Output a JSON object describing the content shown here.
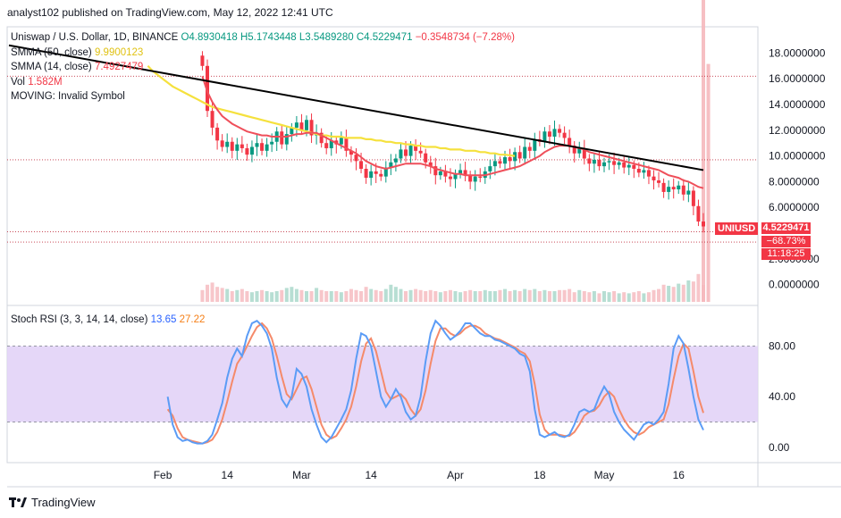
{
  "header": {
    "publish_text": "analyst102 published on TradingView.com, May 12, 2022 12:41 UTC"
  },
  "legend": {
    "symbol": "Uniswap / U.S. Dollar, 1D, BINANCE",
    "open": "O4.8930418",
    "high": "H5.1743448",
    "low": "L3.5489280",
    "close": "C4.5229471",
    "change": "−0.3548734 (−7.28%)",
    "sma50_label": "SMMA (50, close)",
    "sma50_value": "9.9900123",
    "sma14_label": "SMMA (14, close)",
    "sma14_value": "7.4927479",
    "vol_label": "Vol",
    "vol_value": "1.582M",
    "moving_label": "MOVING: Invalid Symbol",
    "stoch_label": "Stoch RSI (3, 3, 14, 14, close)",
    "stoch_k_value": "13.65",
    "stoch_d_value": "27.22"
  },
  "price_tags": {
    "symbol": "UNIUSD",
    "price": "4.5229471",
    "change_pct": "−68.73%",
    "countdown": "11:18:25"
  },
  "footer": {
    "brand": "TradingView"
  },
  "colors": {
    "up": "#089981",
    "down": "#f23645",
    "sma50": "#f5e13d",
    "sma14": "#ef4f5a",
    "trend": "#000000",
    "stoch_k": "#5b9cf6",
    "stoch_d": "#f58a6a",
    "band": "#e1d0f7"
  },
  "chart_data": [
    {
      "type": "candlestick",
      "title": "Uniswap / U.S. Dollar, 1D, BINANCE",
      "ylim": [
        -1,
        19
      ],
      "y_ticks": [
        0,
        2,
        4,
        6,
        8,
        10,
        12,
        14,
        16,
        18
      ],
      "y_tick_labels": [
        "0.0000000",
        "2.0000000",
        "",
        "6.0000000",
        "8.0000000",
        "10.0000000",
        "12.0000000",
        "14.0000000",
        "16.0000000",
        "18.0000000"
      ],
      "x_tick_labels": [
        {
          "day": 31,
          "label": "Feb"
        },
        {
          "day": 44,
          "label": "14"
        },
        {
          "day": 59,
          "label": "Mar"
        },
        {
          "day": 73,
          "label": "14"
        },
        {
          "day": 90,
          "label": "Apr"
        },
        {
          "day": 107,
          "label": "18"
        },
        {
          "day": 120,
          "label": "May"
        },
        {
          "day": 135,
          "label": "16"
        }
      ],
      "dotted_levels": [
        16.2,
        9.7,
        4.1,
        3.3
      ],
      "closes": [
        17.0,
        13.5,
        12.2,
        11.2,
        10.7,
        11.1,
        10.4,
        10.9,
        10.6,
        10.1,
        10.7,
        11.0,
        10.4,
        10.9,
        11.1,
        11.9,
        10.9,
        11.7,
        12.2,
        12.6,
        12.0,
        12.8,
        11.6,
        11.8,
        11.0,
        10.6,
        11.2,
        10.9,
        11.4,
        10.4,
        10.1,
        9.6,
        9.0,
        8.3,
        8.8,
        8.6,
        8.4,
        9.1,
        9.5,
        9.8,
        10.5,
        10.0,
        10.8,
        10.4,
        10.2,
        9.5,
        9.2,
        8.5,
        8.8,
        8.4,
        8.2,
        8.6,
        8.9,
        8.5,
        8.0,
        8.4,
        8.3,
        8.8,
        9.2,
        9.6,
        9.4,
        9.9,
        9.6,
        10.3,
        9.8,
        10.7,
        10.4,
        11.3,
        11.1,
        11.9,
        11.5,
        12.1,
        11.8,
        11.4,
        10.8,
        10.2,
        10.6,
        9.8,
        9.4,
        9.7,
        9.2,
        9.5,
        9.6,
        9.3,
        9.5,
        9.1,
        9.3,
        9.0,
        8.7,
        8.9,
        8.4,
        8.1,
        7.9,
        7.2,
        7.6,
        7.4,
        7.7,
        7.0,
        7.3,
        6.1,
        4.9,
        4.52
      ],
      "smma14": [
        16.2,
        15.0,
        14.2,
        13.6,
        13.1,
        12.8,
        12.5,
        12.3,
        12.1,
        11.9,
        11.8,
        11.7,
        11.6,
        11.6,
        11.5,
        11.5,
        11.5,
        11.5,
        11.6,
        11.7,
        11.7,
        11.8,
        11.8,
        11.8,
        11.6,
        11.4,
        11.2,
        11.0,
        10.8,
        10.6,
        10.4,
        10.2,
        9.9,
        9.6,
        9.4,
        9.2,
        9.1,
        9.0,
        9.1,
        9.2,
        9.3,
        9.4,
        9.4,
        9.4,
        9.4,
        9.3,
        9.2,
        9.0,
        8.9,
        8.8,
        8.7,
        8.6,
        8.6,
        8.5,
        8.5,
        8.5,
        8.5,
        8.5,
        8.6,
        8.7,
        8.8,
        8.9,
        9.0,
        9.1,
        9.2,
        9.4,
        9.6,
        9.8,
        10.0,
        10.3,
        10.5,
        10.7,
        10.8,
        10.8,
        10.8,
        10.7,
        10.6,
        10.5,
        10.3,
        10.2,
        10.1,
        10.0,
        9.9,
        9.8,
        9.7,
        9.6,
        9.5,
        9.4,
        9.3,
        9.2,
        9.1,
        9.0,
        8.9,
        8.7,
        8.5,
        8.4,
        8.3,
        8.1,
        8.0,
        7.8,
        7.6,
        7.49
      ],
      "smma50": [
        17.0,
        16.6,
        16.3,
        16.0,
        15.7,
        15.4,
        15.2,
        15.0,
        14.8,
        14.6,
        14.4,
        14.2,
        14.0,
        13.8,
        13.7,
        13.6,
        13.5,
        13.4,
        13.3,
        13.2,
        13.1,
        13.0,
        12.9,
        12.8,
        12.7,
        12.6,
        12.5,
        12.4,
        12.3,
        12.2,
        12.1,
        12.0,
        11.9,
        11.8,
        11.7,
        11.6,
        11.6,
        11.5,
        11.5,
        11.5,
        11.4,
        11.4,
        11.4,
        11.4,
        11.3,
        11.3,
        11.2,
        11.2,
        11.1,
        11.1,
        11.0,
        11.0,
        10.9,
        10.9,
        10.8,
        10.8,
        10.7,
        10.7,
        10.7,
        10.6,
        10.6,
        10.5,
        10.5,
        10.5,
        10.4,
        10.4,
        10.4,
        10.3,
        10.3,
        10.2,
        10.2,
        10.1,
        10.1,
        10.05,
        9.99
      ],
      "smma50_start_day": 28,
      "trendline": {
        "from": {
          "day": 0,
          "price": 18.6
        },
        "to": {
          "day": 140,
          "price": 8.9
        }
      },
      "volumes": [
        1.1,
        1.6,
        1.8,
        1.4,
        1.3,
        1.2,
        1.0,
        1.1,
        1.2,
        1.0,
        0.9,
        1.0,
        1.1,
        1.0,
        0.9,
        1.0,
        1.1,
        1.3,
        1.4,
        1.2,
        1.1,
        1.0,
        1.0,
        1.3,
        1.1,
        1.0,
        1.0,
        1.0,
        0.9,
        1.0,
        1.2,
        1.1,
        1.0,
        1.4,
        1.2,
        1.1,
        1.0,
        1.2,
        1.6,
        1.4,
        1.2,
        1.0,
        1.1,
        1.2,
        1.1,
        1.0,
        1.1,
        1.0,
        0.9,
        1.0,
        1.1,
        1.0,
        0.9,
        1.0,
        1.1,
        1.0,
        1.0,
        1.1,
        1.0,
        1.0,
        1.1,
        1.2,
        1.0,
        1.1,
        1.0,
        1.2,
        1.1,
        1.2,
        1.0,
        1.1,
        1.0,
        1.0,
        1.1,
        1.1,
        1.2,
        0.9,
        1.1,
        1.0,
        0.9,
        1.0,
        0.8,
        1.0,
        0.9,
        1.0,
        0.8,
        0.9,
        0.8,
        0.9,
        1.0,
        0.8,
        0.9,
        1.1,
        1.2,
        1.6,
        1.5,
        1.4,
        1.7,
        1.6,
        2.0,
        1.9,
        2.6,
        1.58
      ],
      "volume_bars": [
        {
          "day": 140,
          "value": 5.0
        },
        {
          "day": 141,
          "value": 3.7
        }
      ]
    },
    {
      "type": "line",
      "title": "Stoch RSI (3, 3, 14, 14, close)",
      "ylim": [
        -10,
        110
      ],
      "y_ticks": [
        0,
        40,
        80
      ],
      "y_tick_labels": [
        "0.00",
        "40.00",
        "80.00"
      ],
      "band": [
        20,
        80
      ],
      "series": [
        {
          "name": "K",
          "values": [
            40,
            18,
            8,
            5,
            6,
            4,
            3,
            3,
            5,
            10,
            22,
            35,
            55,
            70,
            78,
            72,
            88,
            98,
            100,
            96,
            90,
            78,
            55,
            38,
            32,
            40,
            62,
            58,
            48,
            30,
            18,
            8,
            4,
            8,
            15,
            22,
            30,
            45,
            70,
            90,
            88,
            80,
            60,
            40,
            32,
            38,
            46,
            40,
            28,
            22,
            25,
            40,
            68,
            90,
            100,
            96,
            90,
            85,
            88,
            92,
            98,
            98,
            94,
            90,
            88,
            88,
            85,
            84,
            82,
            80,
            78,
            74,
            72,
            60,
            30,
            10,
            8,
            10,
            12,
            9,
            8,
            10,
            18,
            28,
            30,
            28,
            30,
            40,
            48,
            42,
            28,
            20,
            14,
            10,
            6,
            12,
            18,
            20,
            18,
            22,
            28,
            50,
            78,
            88,
            82,
            62,
            40,
            22,
            13.65
          ]
        },
        {
          "name": "D",
          "values": [
            30,
            25,
            15,
            8,
            6,
            5,
            4,
            3,
            4,
            6,
            12,
            22,
            36,
            52,
            66,
            72,
            80,
            88,
            95,
            98,
            94,
            86,
            72,
            56,
            42,
            38,
            46,
            54,
            56,
            46,
            32,
            18,
            10,
            7,
            9,
            15,
            22,
            32,
            48,
            68,
            82,
            86,
            76,
            60,
            44,
            38,
            40,
            42,
            38,
            30,
            25,
            30,
            45,
            66,
            84,
            94,
            94,
            90,
            88,
            90,
            94,
            96,
            96,
            94,
            90,
            88,
            86,
            85,
            83,
            81,
            79,
            76,
            74,
            68,
            50,
            26,
            14,
            10,
            10,
            10,
            9,
            9,
            12,
            18,
            25,
            28,
            29,
            33,
            40,
            44,
            40,
            30,
            22,
            16,
            12,
            10,
            12,
            16,
            18,
            20,
            22,
            34,
            54,
            72,
            82,
            78,
            60,
            40,
            27.22
          ]
        }
      ]
    }
  ]
}
